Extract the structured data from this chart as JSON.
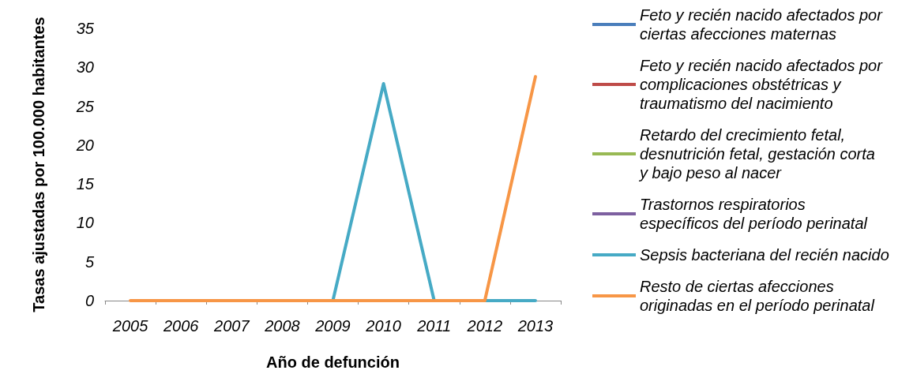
{
  "chart_data": {
    "type": "line",
    "xlabel": "Año de defunción",
    "ylabel": "Tasas ajustadas por 100.000 habitantes",
    "categories": [
      "2005",
      "2006",
      "2007",
      "2008",
      "2009",
      "2010",
      "2011",
      "2012",
      "2013"
    ],
    "ylim": [
      0,
      35
    ],
    "yticks": [
      0,
      5,
      10,
      15,
      20,
      25,
      30,
      35
    ],
    "legend": "right",
    "series": [
      {
        "name": "Feto y recién nacido afectados por ciertas afecciones maternas",
        "color": "#4a7ebb",
        "values": [
          null,
          null,
          null,
          null,
          null,
          null,
          null,
          null,
          null
        ]
      },
      {
        "name": "Feto y recién nacido afectados por complicaciones obstétricas y traumatismo del nacimiento",
        "color": "#be4b48",
        "values": [
          null,
          null,
          null,
          null,
          null,
          null,
          null,
          null,
          null
        ]
      },
      {
        "name": "Retardo del crecimiento fetal, desnutrición fetal, gestación corta y bajo peso al nacer",
        "color": "#98b954",
        "values": [
          null,
          null,
          null,
          null,
          null,
          null,
          null,
          null,
          null
        ]
      },
      {
        "name": "Trastornos respiratorios específicos del período perinatal",
        "color": "#7d60a0",
        "values": [
          null,
          null,
          null,
          null,
          null,
          null,
          null,
          null,
          null
        ]
      },
      {
        "name": "Sepsis bacteriana del recién nacido",
        "color": "#46aac5",
        "values": [
          null,
          null,
          null,
          null,
          0,
          27.9,
          0,
          0,
          0
        ]
      },
      {
        "name": "Resto de ciertas afecciones originadas en el período perinatal",
        "color": "#f79646",
        "values": [
          0,
          0,
          0,
          0,
          0,
          0,
          0,
          0,
          28.8
        ]
      }
    ]
  }
}
